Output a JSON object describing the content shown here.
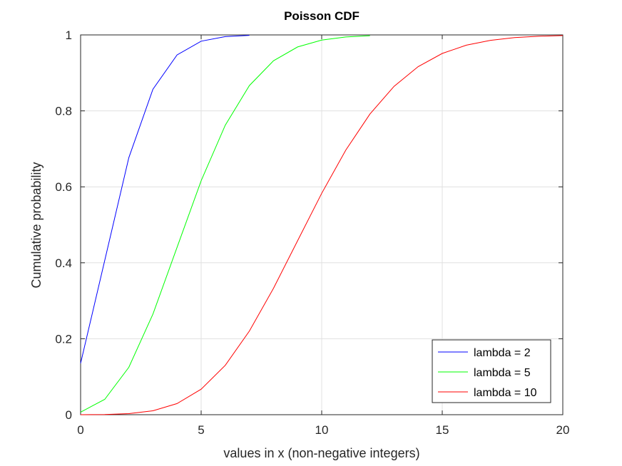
{
  "chart_data": {
    "type": "line",
    "title": "Poisson CDF",
    "xlabel": "values in x (non-negative integers)",
    "ylabel": "Cumulative probability",
    "xlim": [
      0,
      20
    ],
    "ylim": [
      0,
      1
    ],
    "xticks": [
      0,
      5,
      10,
      15,
      20
    ],
    "xtick_labels": [
      "0",
      "5",
      "10",
      "15",
      "20"
    ],
    "yticks": [
      0,
      0.2,
      0.4,
      0.6,
      0.8,
      1
    ],
    "ytick_labels": [
      "0",
      "0.2",
      "0.4",
      "0.6",
      "0.8",
      "1"
    ],
    "grid": true,
    "legend_position": "bottom-right",
    "series": [
      {
        "name": "lambda = 2",
        "color": "#0000ff",
        "x": [
          0,
          1,
          2,
          3,
          4,
          5,
          6,
          7
        ],
        "values": [
          0.1353,
          0.406,
          0.6767,
          0.8571,
          0.9473,
          0.9834,
          0.9955,
          0.9989
        ]
      },
      {
        "name": "lambda = 5",
        "color": "#00ff00",
        "x": [
          0,
          1,
          2,
          3,
          4,
          5,
          6,
          7,
          8,
          9,
          10,
          11,
          12
        ],
        "values": [
          0.0067,
          0.0404,
          0.1247,
          0.265,
          0.4405,
          0.616,
          0.7622,
          0.8666,
          0.9319,
          0.9682,
          0.9863,
          0.9945,
          0.998
        ]
      },
      {
        "name": "lambda = 10",
        "color": "#ff0000",
        "x": [
          0,
          1,
          2,
          3,
          4,
          5,
          6,
          7,
          8,
          9,
          10,
          11,
          12,
          13,
          14,
          15,
          16,
          17,
          18,
          19,
          20
        ],
        "values": [
          4.54e-05,
          0.0005,
          0.0028,
          0.0103,
          0.0293,
          0.0671,
          0.1301,
          0.2202,
          0.3328,
          0.4579,
          0.583,
          0.6968,
          0.7916,
          0.8645,
          0.9165,
          0.9513,
          0.973,
          0.9857,
          0.9928,
          0.9965,
          0.9984
        ]
      }
    ]
  }
}
